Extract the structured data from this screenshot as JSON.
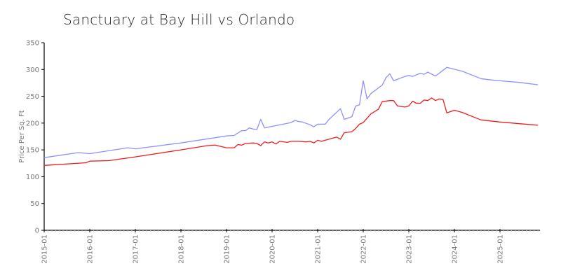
{
  "chart_data": {
    "type": "line",
    "title": "Sanctuary at Bay Hill vs Orlando",
    "xlabel": "",
    "ylabel": "Price Per Sq. Ft",
    "ylim": [
      0,
      350
    ],
    "yticks": [
      0,
      50,
      100,
      150,
      200,
      250,
      300,
      350
    ],
    "xticks": [
      "2015-01",
      "2016-01",
      "2017-01",
      "2018-01",
      "2019-01",
      "2020-01",
      "2021-01",
      "2022-01",
      "2023-01",
      "2024-01",
      "2025-01"
    ],
    "grid": false,
    "legend": "none",
    "series": [
      {
        "name": "Sanctuary at Bay Hill",
        "color": "#8f8fff",
        "points": [
          [
            "2015-01",
            135.5
          ],
          [
            "2015-10",
            145
          ],
          [
            "2016-01",
            143
          ],
          [
            "2016-11",
            154
          ],
          [
            "2017-01",
            152
          ],
          [
            "2018-01",
            163
          ],
          [
            "2019-01",
            176
          ],
          [
            "2019-03",
            177
          ],
          [
            "2019-05",
            186
          ],
          [
            "2019-06",
            186
          ],
          [
            "2019-07",
            191
          ],
          [
            "2019-08",
            189
          ],
          [
            "2019-09",
            188
          ],
          [
            "2019-10",
            207
          ],
          [
            "2019-11",
            191
          ],
          [
            "2020-01",
            194
          ],
          [
            "2020-06",
            201
          ],
          [
            "2020-07",
            205
          ],
          [
            "2020-08",
            203
          ],
          [
            "2020-09",
            202
          ],
          [
            "2020-11",
            197
          ],
          [
            "2020-12",
            193
          ],
          [
            "2021-01",
            198
          ],
          [
            "2021-03",
            198
          ],
          [
            "2021-04",
            207
          ],
          [
            "2021-07",
            227
          ],
          [
            "2021-08",
            207
          ],
          [
            "2021-10",
            212
          ],
          [
            "2021-11",
            232
          ],
          [
            "2021-12",
            234
          ],
          [
            "2022-01",
            279
          ],
          [
            "2022-02",
            245
          ],
          [
            "2022-03",
            255
          ],
          [
            "2022-06",
            271
          ],
          [
            "2022-07",
            285
          ],
          [
            "2022-08",
            292
          ],
          [
            "2022-09",
            279
          ],
          [
            "2022-12",
            287
          ],
          [
            "2023-01",
            289
          ],
          [
            "2023-02",
            287
          ],
          [
            "2023-04",
            293
          ],
          [
            "2023-05",
            291
          ],
          [
            "2023-06",
            295
          ],
          [
            "2023-08",
            288
          ],
          [
            "2023-09",
            293
          ],
          [
            "2023-11",
            304
          ],
          [
            "2024-03",
            297
          ],
          [
            "2024-08",
            283
          ],
          [
            "2024-10",
            281
          ],
          [
            "2025-01",
            279
          ],
          [
            "2025-06",
            276
          ],
          [
            "2025-11",
            271.5
          ]
        ]
      },
      {
        "name": "Orlando",
        "color": "#ee1c1c",
        "points": [
          [
            "2015-01",
            121
          ],
          [
            "2016-00",
            126
          ],
          [
            "2016-01",
            129
          ],
          [
            "2016-06",
            130
          ],
          [
            "2017-01",
            137
          ],
          [
            "2018-01",
            150
          ],
          [
            "2018-08",
            158
          ],
          [
            "2018-10",
            159
          ],
          [
            "2019-01",
            154
          ],
          [
            "2019-03",
            154
          ],
          [
            "2019-04",
            160
          ],
          [
            "2019-05",
            159
          ],
          [
            "2019-06",
            162
          ],
          [
            "2019-08",
            163
          ],
          [
            "2019-09",
            162
          ],
          [
            "2019-10",
            158
          ],
          [
            "2019-11",
            165
          ],
          [
            "2019-12",
            163
          ],
          [
            "2020-01",
            165
          ],
          [
            "2020-02",
            161
          ],
          [
            "2020-03",
            166
          ],
          [
            "2020-05",
            164
          ],
          [
            "2020-06",
            166
          ],
          [
            "2020-08",
            166
          ],
          [
            "2020-10",
            165
          ],
          [
            "2020-11",
            166
          ],
          [
            "2020-12",
            163
          ],
          [
            "2021-01",
            168
          ],
          [
            "2021-02",
            166
          ],
          [
            "2021-04",
            170
          ],
          [
            "2021-06",
            174
          ],
          [
            "2021-07",
            170
          ],
          [
            "2021-08",
            182
          ],
          [
            "2021-10",
            184
          ],
          [
            "2021-11",
            190
          ],
          [
            "2021-12",
            198
          ],
          [
            "2022-01",
            201
          ],
          [
            "2022-03",
            217
          ],
          [
            "2022-05",
            226
          ],
          [
            "2022-06",
            240
          ],
          [
            "2022-08",
            242
          ],
          [
            "2022-09",
            242
          ],
          [
            "2022-10",
            232
          ],
          [
            "2022-12",
            230
          ],
          [
            "2023-01",
            232
          ],
          [
            "2023-02",
            241
          ],
          [
            "2023-03",
            237
          ],
          [
            "2023-04",
            237
          ],
          [
            "2023-05",
            243
          ],
          [
            "2023-06",
            242
          ],
          [
            "2023-07",
            247
          ],
          [
            "2023-08",
            242
          ],
          [
            "2023-09",
            245
          ],
          [
            "2023-10",
            244
          ],
          [
            "2023-11",
            219
          ],
          [
            "2024-01",
            224
          ],
          [
            "2024-03",
            220
          ],
          [
            "2024-08",
            206
          ],
          [
            "2025-01",
            202
          ],
          [
            "2025-11",
            196
          ]
        ]
      }
    ]
  }
}
